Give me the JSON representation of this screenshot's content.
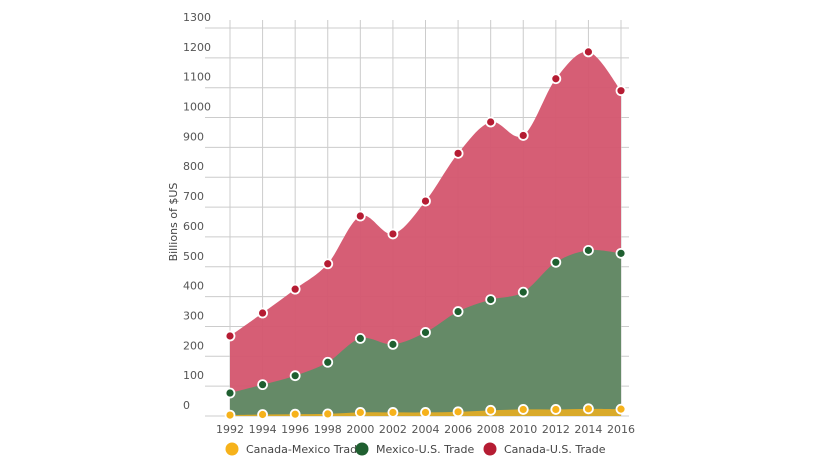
{
  "chart_data": {
    "type": "area",
    "stacked": true,
    "title": "",
    "xlabel": "",
    "ylabel": "Billions of $US",
    "ylim": [
      0,
      1300
    ],
    "yticks": [
      0,
      100,
      200,
      300,
      400,
      500,
      600,
      700,
      800,
      900,
      1000,
      1100,
      1200,
      1300
    ],
    "x": [
      1992,
      1994,
      1996,
      1998,
      2000,
      2002,
      2004,
      2006,
      2008,
      2010,
      2012,
      2014,
      2016
    ],
    "grid": true,
    "legend": "bottom",
    "series": [
      {
        "name": "Canada-Mexico Trade",
        "color": "#f6b21b",
        "values": [
          3,
          5,
          6,
          7,
          12,
          12,
          12,
          14,
          19,
          22,
          22,
          24,
          23
        ]
      },
      {
        "name": "Mexico-U.S. Trade",
        "color": "#1f5f30",
        "area_color": "#5f8c66",
        "values": [
          74,
          100,
          129,
          173,
          248,
          228,
          268,
          336,
          371,
          393,
          493,
          531,
          522
        ]
      },
      {
        "name": "Canada-U.S. Trade",
        "color": "#b51c33",
        "area_color": "#d4556e",
        "values": [
          191,
          240,
          290,
          330,
          410,
          370,
          440,
          530,
          595,
          525,
          615,
          665,
          545
        ]
      }
    ]
  }
}
